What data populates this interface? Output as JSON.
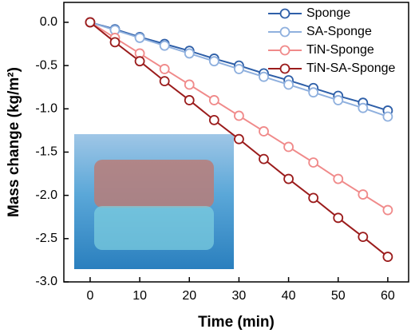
{
  "chart_data": {
    "type": "line",
    "x_label": "Time (min)",
    "y_label": "Mass change (kg/m²)",
    "x": [
      0,
      5,
      10,
      15,
      20,
      25,
      30,
      35,
      40,
      45,
      50,
      55,
      60
    ],
    "series": [
      {
        "name": "Sponge",
        "color": "#2e5fa8",
        "values": [
          0,
          -0.08,
          -0.17,
          -0.25,
          -0.33,
          -0.42,
          -0.5,
          -0.59,
          -0.67,
          -0.76,
          -0.85,
          -0.93,
          -1.02
        ]
      },
      {
        "name": "SA-Sponge",
        "color": "#8fb0de",
        "values": [
          0,
          -0.09,
          -0.18,
          -0.27,
          -0.36,
          -0.45,
          -0.54,
          -0.63,
          -0.72,
          -0.81,
          -0.9,
          -0.99,
          -1.09
        ]
      },
      {
        "name": "TiN-Sponge",
        "color": "#f08a8a",
        "values": [
          0,
          -0.18,
          -0.36,
          -0.54,
          -0.72,
          -0.9,
          -1.08,
          -1.26,
          -1.44,
          -1.62,
          -1.81,
          -1.99,
          -2.17
        ]
      },
      {
        "name": "TiN-SA-Sponge",
        "color": "#9b1c1c",
        "values": [
          0,
          -0.23,
          -0.45,
          -0.68,
          -0.9,
          -1.13,
          -1.35,
          -1.58,
          -1.81,
          -2.03,
          -2.26,
          -2.48,
          -2.71
        ]
      }
    ],
    "xlim": [
      -5.3,
      64.2
    ],
    "xticks": [
      0,
      10,
      20,
      30,
      40,
      50,
      60
    ],
    "ylim": [
      -3.0,
      0.23
    ],
    "yticks": [
      {
        "value": 0,
        "label": "0.0"
      },
      {
        "value": -0.5,
        "label": "-0.5"
      },
      {
        "value": -1,
        "label": "-1.0"
      },
      {
        "value": -1.5,
        "label": "-1.5"
      },
      {
        "value": -2,
        "label": "-2.0"
      },
      {
        "value": -2.5,
        "label": "-2.5"
      },
      {
        "value": -3,
        "label": "-3.0"
      }
    ],
    "legend": "upper right"
  }
}
